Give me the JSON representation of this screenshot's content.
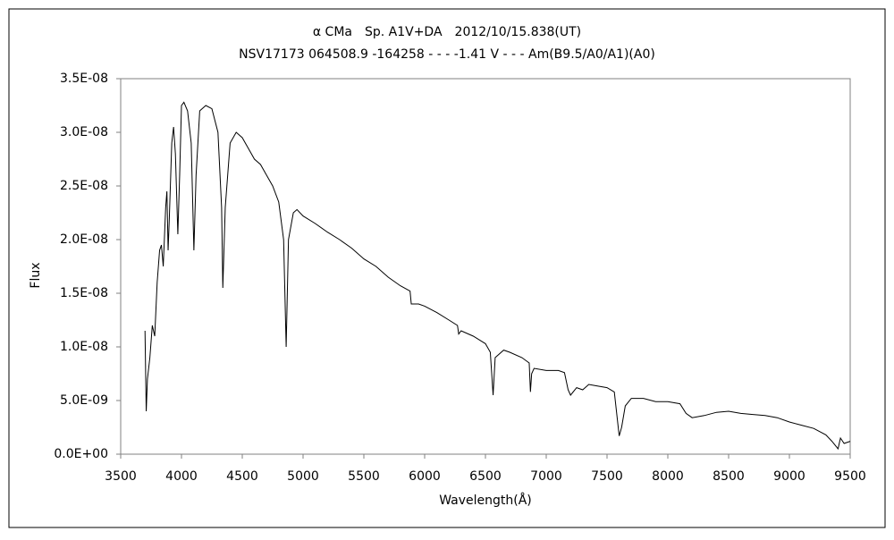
{
  "chart_data": {
    "type": "line",
    "title": "α CMa　Sp. A1V+DA　2012/10/15.838(UT)",
    "subtitle": "NSV17173 064508.9 -164258 - - - -1.41 V - - - Am(B9.5/A0/A1)(A0)",
    "y_label": "Flux",
    "x_label": "Wavelength(Å)",
    "color": "#000000",
    "grid": false,
    "xlim": [
      3500,
      9500
    ],
    "xticks": [
      3500,
      4000,
      4500,
      5000,
      5500,
      6000,
      6500,
      7000,
      7500,
      8000,
      8500,
      9000,
      9500
    ],
    "ylim": [
      0,
      3.5e-08
    ],
    "yticks": [
      {
        "value": 0,
        "label": "0.0E+00"
      },
      {
        "value": 5e-09,
        "label": "5.0E-09"
      },
      {
        "value": 1e-08,
        "label": "1.0E-08"
      },
      {
        "value": 1.5e-08,
        "label": "1.5E-08"
      },
      {
        "value": 2e-08,
        "label": "2.0E-08"
      },
      {
        "value": 2.5e-08,
        "label": "2.5E-08"
      },
      {
        "value": 3e-08,
        "label": "3.0E-08"
      },
      {
        "value": 3.5e-08,
        "label": "3.5E-08"
      }
    ],
    "x": [
      3700,
      3710,
      3720,
      3740,
      3760,
      3780,
      3800,
      3820,
      3835,
      3850,
      3870,
      3880,
      3890,
      3900,
      3920,
      3935,
      3950,
      3970,
      3985,
      4000,
      4020,
      4050,
      4080,
      4102,
      4120,
      4150,
      4200,
      4250,
      4300,
      4330,
      4340,
      4360,
      4400,
      4450,
      4500,
      4550,
      4600,
      4650,
      4700,
      4750,
      4800,
      4840,
      4861,
      4880,
      4920,
      4950,
      5000,
      5100,
      5200,
      5300,
      5400,
      5500,
      5600,
      5700,
      5800,
      5880,
      5890,
      5950,
      6000,
      6100,
      6200,
      6270,
      6280,
      6300,
      6400,
      6500,
      6540,
      6563,
      6580,
      6650,
      6700,
      6800,
      6860,
      6870,
      6880,
      6900,
      7000,
      7100,
      7150,
      7180,
      7200,
      7250,
      7300,
      7350,
      7400,
      7500,
      7560,
      7600,
      7620,
      7650,
      7700,
      7800,
      7900,
      8000,
      8100,
      8150,
      8200,
      8300,
      8400,
      8500,
      8600,
      8700,
      8800,
      8900,
      9000,
      9100,
      9200,
      9300,
      9350,
      9400,
      9420,
      9450,
      9500
    ],
    "values": [
      1.15e-08,
      4e-09,
      7e-09,
      9e-09,
      1.2e-08,
      1.1e-08,
      1.6e-08,
      1.9e-08,
      1.95e-08,
      1.75e-08,
      2.3e-08,
      2.45e-08,
      1.9e-08,
      2.2e-08,
      2.9e-08,
      3.05e-08,
      2.8e-08,
      2.05e-08,
      2.6e-08,
      3.25e-08,
      3.28e-08,
      3.2e-08,
      2.9e-08,
      1.9e-08,
      2.6e-08,
      3.2e-08,
      3.25e-08,
      3.22e-08,
      3e-08,
      2.3e-08,
      1.55e-08,
      2.3e-08,
      2.9e-08,
      3e-08,
      2.95e-08,
      2.85e-08,
      2.75e-08,
      2.7e-08,
      2.6e-08,
      2.5e-08,
      2.35e-08,
      2e-08,
      1e-08,
      2e-08,
      2.25e-08,
      2.28e-08,
      2.22e-08,
      2.15e-08,
      2.07e-08,
      2e-08,
      1.92e-08,
      1.82e-08,
      1.75e-08,
      1.65e-08,
      1.57e-08,
      1.52e-08,
      1.4e-08,
      1.4e-08,
      1.38e-08,
      1.32e-08,
      1.25e-08,
      1.2e-08,
      1.12e-08,
      1.15e-08,
      1.1e-08,
      1.03e-08,
      9.5e-09,
      5.5e-09,
      9e-09,
      9.7e-09,
      9.5e-09,
      9e-09,
      8.5e-09,
      5.8e-09,
      7.5e-09,
      8e-09,
      7.8e-09,
      7.8e-09,
      7.6e-09,
      6e-09,
      5.5e-09,
      6.2e-09,
      6e-09,
      6.5e-09,
      6.4e-09,
      6.2e-09,
      5.8e-09,
      1.7e-09,
      2.5e-09,
      4.5e-09,
      5.2e-09,
      5.2e-09,
      4.9e-09,
      4.9e-09,
      4.7e-09,
      3.8e-09,
      3.4e-09,
      3.6e-09,
      3.9e-09,
      4e-09,
      3.8e-09,
      3.7e-09,
      3.6e-09,
      3.4e-09,
      3e-09,
      2.7e-09,
      2.4e-09,
      1.8e-09,
      1.2e-09,
      5e-10,
      1.5e-09,
      1e-09,
      1.2e-09
    ]
  }
}
